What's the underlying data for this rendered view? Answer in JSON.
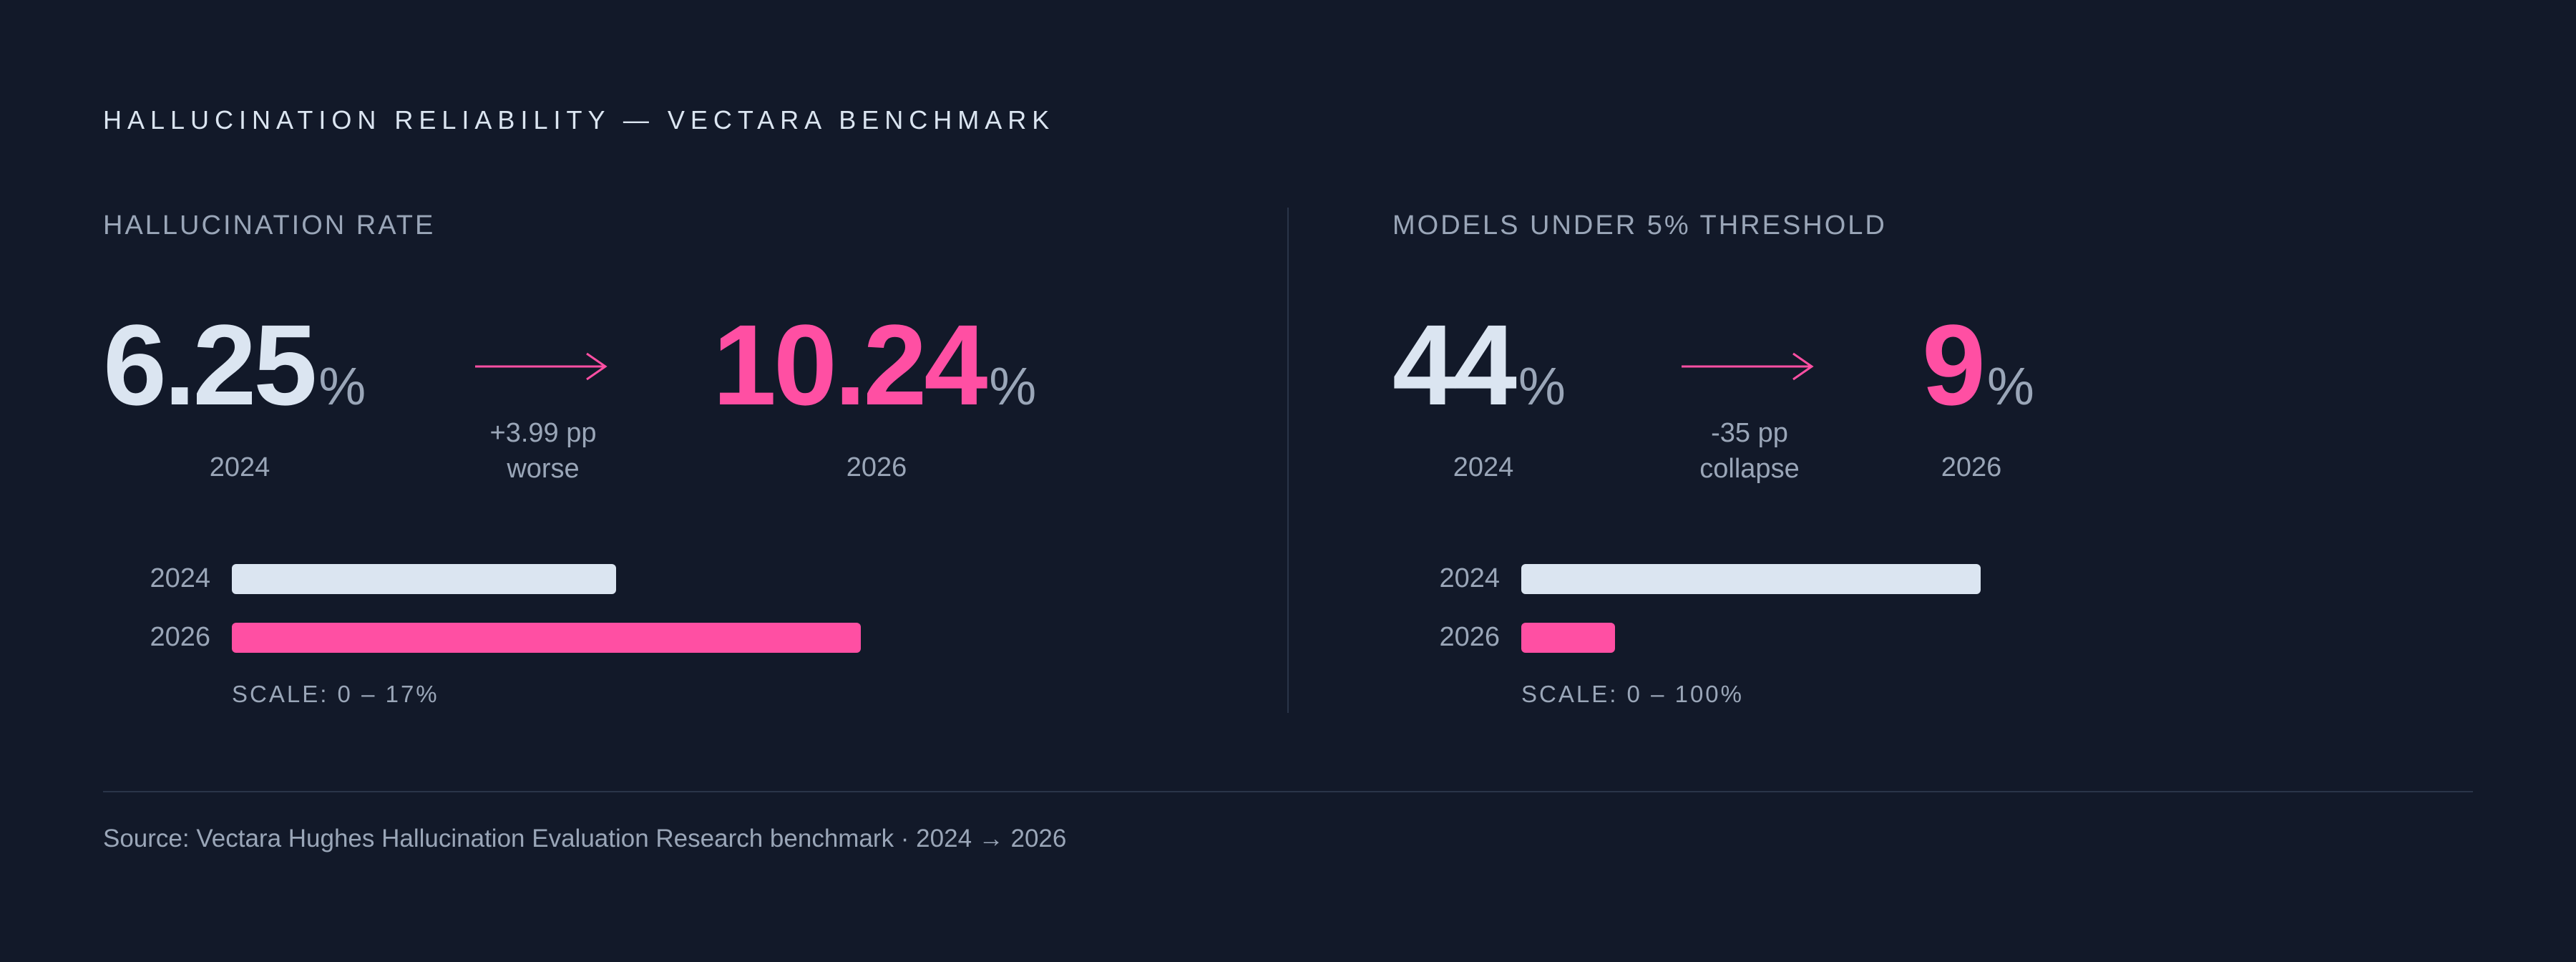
{
  "title": "HALLUCINATION RELIABILITY — VECTARA BENCHMARK",
  "colors": {
    "background": "#121929",
    "before": "#dbe5f1",
    "after": "#ff4fa3",
    "muted": "#9aa6b8"
  },
  "chart_data": [
    {
      "type": "bar",
      "title": "HALLUCINATION RATE",
      "unit": "%",
      "categories": [
        "2024",
        "2026"
      ],
      "values": [
        6.25,
        10.24
      ],
      "value_labels": [
        "6.25",
        "10.24"
      ],
      "change": {
        "line1": "+3.99 pp",
        "line2": "worse"
      },
      "scale_label": "SCALE: 0 – 17%",
      "xlim": [
        0,
        17
      ]
    },
    {
      "type": "bar",
      "title": "MODELS UNDER 5% THRESHOLD",
      "unit": "%",
      "categories": [
        "2024",
        "2026"
      ],
      "values": [
        44,
        9
      ],
      "value_labels": [
        "44",
        "9"
      ],
      "change": {
        "line1": "-35 pp",
        "line2": "collapse"
      },
      "scale_label": "SCALE: 0 – 100%",
      "xlim": [
        0,
        100
      ]
    }
  ],
  "source": "Source: Vectara Hughes Hallucination Evaluation Research benchmark · 2024 → 2026"
}
